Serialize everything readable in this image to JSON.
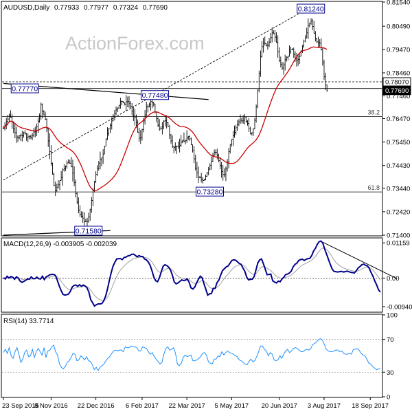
{
  "chart_data": [
    {
      "type": "ohlc",
      "title": "AUDUSD,Daily",
      "ohlc_header": {
        "open": "0.77933",
        "high": "0.77977",
        "low": "0.77324",
        "close": "0.77690"
      },
      "watermark": "ActionForex.com",
      "ylim": [
        0.714,
        0.8154
      ],
      "price_ticks": [
        "0.81540",
        "0.80490",
        "0.79470",
        "0.78460",
        "0.77460",
        "0.76470",
        "0.75450",
        "0.74430",
        "0.73440",
        "0.72420",
        "0.71400"
      ],
      "price_tick_values": [
        0.8154,
        0.8049,
        0.7947,
        0.7846,
        0.7746,
        0.7647,
        0.7545,
        0.7443,
        0.7344,
        0.7242,
        0.714
      ],
      "price_tags": [
        {
          "label": "0.78070",
          "value": 0.7807,
          "style": "outline"
        },
        {
          "label": "0.77690",
          "value": 0.7769,
          "style": "filled"
        }
      ],
      "annotations": [
        {
          "label": "0.81240",
          "value": 0.8124,
          "date_index": 210
        },
        {
          "label": "0.77770",
          "value": 0.7777,
          "date_index": 12
        },
        {
          "label": "0.77480",
          "value": 0.7748,
          "date_index": 102
        },
        {
          "label": "0.73280",
          "value": 0.7328,
          "date_index": 140
        },
        {
          "label": "0.71580",
          "value": 0.7158,
          "date_index": 56
        }
      ],
      "fib_levels": [
        {
          "label": "38.2",
          "value": 0.7656
        },
        {
          "label": "61.8",
          "value": 0.7328
        }
      ],
      "reference_lines": [
        {
          "style": "dashed",
          "value": 0.7807
        },
        {
          "style": "solid",
          "value": 0.7656
        },
        {
          "style": "solid",
          "value": 0.7328
        },
        {
          "style": "solid",
          "value": 0.7778
        }
      ],
      "trendlines": [
        {
          "style": "dashed",
          "from": [
            0,
            0.738
          ],
          "to": [
            212,
            0.813
          ]
        },
        {
          "style": "solid",
          "from": [
            0,
            0.78
          ],
          "to": [
            142,
            0.773
          ]
        },
        {
          "style": "solid",
          "from": [
            0,
            0.714
          ],
          "to": [
            74,
            0.716
          ]
        }
      ],
      "moving_average": {
        "color": "#cc0000"
      },
      "closes": [
        0.7605,
        0.7617,
        0.7634,
        0.7645,
        0.7661,
        0.7653,
        0.7631,
        0.7602,
        0.7586,
        0.7567,
        0.7564,
        0.7572,
        0.7574,
        0.7572,
        0.7586,
        0.7582,
        0.7564,
        0.7568,
        0.757,
        0.7566,
        0.7574,
        0.7589,
        0.7589,
        0.7612,
        0.7636,
        0.7658,
        0.7709,
        0.7678,
        0.7663,
        0.7644,
        0.7602,
        0.755,
        0.7503,
        0.7453,
        0.7405,
        0.7357,
        0.7333,
        0.7347,
        0.7359,
        0.7378,
        0.7391,
        0.7424,
        0.7429,
        0.7439,
        0.7454,
        0.7454,
        0.7453,
        0.7437,
        0.741,
        0.7369,
        0.7321,
        0.7284,
        0.7248,
        0.723,
        0.7222,
        0.7214,
        0.7199,
        0.72,
        0.7201,
        0.7219,
        0.7251,
        0.7291,
        0.7333,
        0.7372,
        0.7405,
        0.7432,
        0.7452,
        0.7469,
        0.7476,
        0.7493,
        0.7527,
        0.7559,
        0.7582,
        0.7603,
        0.7618,
        0.7637,
        0.7657,
        0.767,
        0.7685,
        0.7693,
        0.7705,
        0.7721,
        0.7722,
        0.7715,
        0.771,
        0.772,
        0.7722,
        0.7714,
        0.77,
        0.7679,
        0.7659,
        0.7653,
        0.7629,
        0.7588,
        0.7562,
        0.7566,
        0.7599,
        0.7637,
        0.7663,
        0.7699,
        0.77,
        0.7707,
        0.7721,
        0.7716,
        0.7711,
        0.7675,
        0.7647,
        0.7618,
        0.7601,
        0.7604,
        0.7612,
        0.7636,
        0.7638,
        0.7629,
        0.7613,
        0.7576,
        0.755,
        0.7527,
        0.7522,
        0.7525,
        0.7526,
        0.7526,
        0.7531,
        0.7544,
        0.755,
        0.7548,
        0.7552,
        0.7562,
        0.757,
        0.7559,
        0.7533,
        0.7508,
        0.7472,
        0.7431,
        0.7411,
        0.7391,
        0.739,
        0.7383,
        0.7378,
        0.7383,
        0.7396,
        0.7411,
        0.7427,
        0.7443,
        0.7461,
        0.7486,
        0.75,
        0.75,
        0.7485,
        0.7464,
        0.7443,
        0.7417,
        0.7404,
        0.7403,
        0.7428,
        0.7458,
        0.7503,
        0.7535,
        0.7557,
        0.7572,
        0.7587,
        0.7607,
        0.762,
        0.7633,
        0.764,
        0.7637,
        0.764,
        0.7651,
        0.7635,
        0.7626,
        0.7603,
        0.7581,
        0.7586,
        0.7603,
        0.764,
        0.7699,
        0.7771,
        0.7845,
        0.7917,
        0.796,
        0.7977,
        0.7973,
        0.7965,
        0.7966,
        0.798,
        0.7999,
        0.802,
        0.8016,
        0.8001,
        0.7978,
        0.7939,
        0.79,
        0.7883,
        0.7867,
        0.788,
        0.7903,
        0.7914,
        0.7919,
        0.7937,
        0.7947,
        0.7946,
        0.7926,
        0.7906,
        0.7901,
        0.7904,
        0.7918,
        0.7941,
        0.7963,
        0.7984,
        0.7998,
        0.802,
        0.8051,
        0.8062,
        0.8071,
        0.8048,
        0.8018,
        0.7994,
        0.7981,
        0.7977,
        0.7975,
        0.7948,
        0.789,
        0.7829,
        0.7793,
        0.7769
      ],
      "date_labels": [
        {
          "label": "23 Sep 2016",
          "index": 0
        },
        {
          "label": "8 Nov 2016",
          "index": 33
        },
        {
          "label": "22 Dec 2016",
          "index": 64
        },
        {
          "label": "6 Feb 2017",
          "index": 96
        },
        {
          "label": "22 Mar 2017",
          "index": 127
        },
        {
          "label": "5 May 2017",
          "index": 158
        },
        {
          "label": "20 Jun 2017",
          "index": 191
        },
        {
          "label": "3 Aug 2017",
          "index": 222
        },
        {
          "label": "18 Sep 2017",
          "index": 254
        }
      ],
      "date_count": 262
    },
    {
      "type": "line",
      "title": "MACD(12,26,9) -0.003905 -0.002039",
      "ylim": [
        -0.011,
        0.013
      ],
      "ticks": [
        "0.01159",
        "0.00",
        "-0.009408"
      ],
      "tick_values": [
        0.01159,
        0.0,
        -0.009408
      ],
      "series": [
        {
          "color": "#00008b",
          "values": [
            0.0001,
            -0.0003,
            0.0006,
            0.0,
            0.0005,
            0.0003,
            -0.0004,
            0.0004,
            0.0,
            -0.001,
            -0.0014,
            -0.0011,
            -0.0007,
            -0.0003,
            -0.0003,
            0.0004,
            -0.0002,
            -0.0002,
            0.0003,
            -0.0002,
            -0.0003,
            0.0006,
            -0.0005,
            0.0004,
            0.0007,
            0.0011,
            0.0012,
            0.0012,
            0.0009,
            -0.0007,
            -0.0025,
            -0.004,
            -0.0053,
            -0.0056,
            -0.0055,
            -0.0053,
            -0.0044,
            -0.003,
            -0.0024,
            -0.0023,
            -0.0027,
            -0.0022,
            -0.0027,
            -0.0023,
            -0.0026,
            -0.0032,
            -0.0046,
            -0.0071,
            -0.0081,
            -0.0092,
            -0.0088,
            -0.0085,
            -0.0085,
            -0.0084,
            -0.0075,
            -0.006,
            -0.0037,
            -0.0009,
            0.0017,
            0.0039,
            0.0052,
            0.0063,
            0.0064,
            0.0064,
            0.0061,
            0.0068,
            0.0069,
            0.0073,
            0.0074,
            0.0078,
            0.0079,
            0.0075,
            0.007,
            0.0074,
            0.0071,
            0.0071,
            0.0063,
            0.006,
            0.0053,
            0.0042,
            0.0024,
            0.0003,
            -0.0009,
            -0.0012,
            0.0001,
            0.0021,
            0.0039,
            0.0044,
            0.0041,
            0.0036,
            0.0026,
            0.0009,
            -0.0013,
            -0.0019,
            -0.0016,
            -0.0011,
            -0.0006,
            -0.0008,
            -0.0007,
            -0.0003,
            -0.0014,
            -0.0032,
            -0.0036,
            -0.003,
            -0.0016,
            -0.0004,
            0.0006,
            0.0001,
            -0.0019,
            -0.0037,
            -0.0056,
            -0.0052,
            -0.0051,
            -0.0034,
            -0.0034,
            -0.0015,
            -0.0007,
            0.001,
            0.0025,
            0.0031,
            0.0037,
            0.004,
            0.0049,
            0.0058,
            0.006,
            0.0059,
            0.0054,
            0.0048,
            0.0045,
            0.0033,
            0.0022,
            0.0003,
            -0.0006,
            -0.0004,
            -0.0004,
            0.0005,
            0.0027,
            0.005,
            0.006,
            0.0063,
            0.0047,
            0.0029,
            0.0011,
            0.0012,
            0.0013,
            -0.0009,
            -0.0013,
            -0.0016,
            -0.001,
            -0.0012,
            -0.0003,
            0.0003,
            0.0012,
            0.0013,
            0.0017,
            0.0023,
            0.0037,
            0.0045,
            0.0049,
            0.0058,
            0.0061,
            0.0062,
            0.0058,
            0.0062,
            0.0064,
            0.0065,
            0.0074,
            0.0089,
            0.0098,
            0.0111,
            0.012,
            0.0122,
            0.0115,
            0.0095,
            0.0079,
            0.0062,
            0.0045,
            0.003,
            0.0022,
            0.0021,
            0.002,
            0.0021,
            0.0022,
            0.002,
            0.0021,
            0.0023,
            0.0021,
            0.0019,
            0.0018,
            0.0017,
            0.0024,
            0.0033,
            0.0038,
            0.0044,
            0.0046,
            0.0042,
            0.004,
            0.0032,
            0.0018,
            0.0006,
            -0.001,
            -0.0023,
            -0.0039,
            -0.0046
          ]
        },
        {
          "color": "#a0a0a0",
          "values": [
            0.0001,
            0.0,
            0.0001,
            0.0001,
            0.0002,
            0.0002,
            0.0001,
            0.0002,
            0.0001,
            -0.0001,
            -0.0004,
            -0.0005,
            -0.0006,
            -0.0005,
            -0.0005,
            -0.0003,
            -0.0003,
            -0.0003,
            -0.0002,
            -0.0002,
            -0.0002,
            0.0,
            -0.0001,
            0.0,
            0.0001,
            0.0003,
            0.0005,
            0.0006,
            0.0007,
            0.0004,
            -0.0002,
            -0.001,
            -0.0018,
            -0.0026,
            -0.0032,
            -0.0037,
            -0.0038,
            -0.0037,
            -0.0034,
            -0.0032,
            -0.0031,
            -0.0029,
            -0.0029,
            -0.0028,
            -0.0027,
            -0.0028,
            -0.0032,
            -0.004,
            -0.0048,
            -0.0057,
            -0.0063,
            -0.0068,
            -0.0071,
            -0.0074,
            -0.0074,
            -0.0071,
            -0.0064,
            -0.0053,
            -0.0039,
            -0.0023,
            -0.0008,
            0.0006,
            0.0017,
            0.0026,
            0.0033,
            0.004,
            0.0046,
            0.0051,
            0.0056,
            0.006,
            0.0064,
            0.0066,
            0.0067,
            0.0068,
            0.0069,
            0.0069,
            0.0068,
            0.0067,
            0.0064,
            0.006,
            0.0053,
            0.0043,
            0.0033,
            0.0024,
            0.0019,
            0.002,
            0.0023,
            0.0028,
            0.0031,
            0.0032,
            0.0031,
            0.0027,
            0.0019,
            0.0011,
            0.0006,
            0.0002,
            0.0,
            -0.0001,
            -0.0002,
            -0.0002,
            -0.0005,
            -0.001,
            -0.0015,
            -0.0018,
            -0.0017,
            -0.0015,
            -0.0011,
            -0.0008,
            -0.001,
            -0.0015,
            -0.0023,
            -0.0029,
            -0.0034,
            -0.0034,
            -0.0034,
            -0.003,
            -0.0025,
            -0.0018,
            -0.0009,
            -0.0001,
            0.0007,
            0.0013,
            0.002,
            0.0028,
            0.0034,
            0.0039,
            0.0042,
            0.0043,
            0.0044,
            0.0042,
            0.0038,
            0.0031,
            0.0023,
            0.0018,
            0.0013,
            0.0012,
            0.0015,
            0.0022,
            0.003,
            0.0036,
            0.0039,
            0.0037,
            0.0032,
            0.0028,
            0.0025,
            0.0018,
            0.0012,
            0.0006,
            0.0003,
            0.0,
            -0.0001,
            -0.0,
            0.0002,
            0.0004,
            0.0007,
            0.001,
            0.0015,
            0.0021,
            0.0026,
            0.0033,
            0.0038,
            0.0043,
            0.0046,
            0.0049,
            0.0052,
            0.0055,
            0.0059,
            0.0065,
            0.0072,
            0.008,
            0.0088,
            0.0095,
            0.0099,
            0.0098,
            0.0094,
            0.0088,
            0.008,
            0.007,
            0.006,
            0.0052,
            0.0046,
            0.0041,
            0.0037,
            0.0034,
            0.0031,
            0.0029,
            0.0027,
            0.0025,
            0.0024,
            0.0022,
            0.0022,
            0.0024,
            0.0026,
            0.003,
            0.0033,
            0.0035,
            0.0036,
            0.0035,
            0.0032,
            0.0026,
            0.0019,
            0.0011,
            0.0002,
            -0.0007
          ]
        }
      ],
      "trendline": {
        "from": [
          172,
          0.0118
        ],
        "to": [
          212,
          -0.0002
        ]
      }
    },
    {
      "type": "line",
      "title": "RSI(14) 33.7714",
      "ylim": [
        0,
        100
      ],
      "ticks": [
        "100",
        "70",
        "30",
        "0"
      ],
      "tick_values": [
        100,
        70,
        30,
        0
      ],
      "series": [
        {
          "color": "#1e90ff",
          "values": [
            54,
            58,
            53,
            60,
            50,
            47,
            55,
            60,
            52,
            42,
            46,
            54,
            57,
            49,
            50,
            58,
            48,
            55,
            59,
            55,
            51,
            60,
            48,
            56,
            57,
            61,
            63,
            55,
            51,
            40,
            36,
            34,
            37,
            42,
            44,
            48,
            53,
            52,
            44,
            45,
            50,
            48,
            45,
            49,
            44,
            43,
            39,
            33,
            36,
            32,
            36,
            38,
            40,
            44,
            47,
            49,
            53,
            56,
            57,
            56,
            57,
            57,
            55,
            61,
            60,
            60,
            62,
            61,
            61,
            60,
            56,
            56,
            61,
            60,
            59,
            55,
            52,
            54,
            49,
            46,
            43,
            40,
            42,
            52,
            59,
            61,
            57,
            58,
            60,
            53,
            40,
            38,
            41,
            48,
            51,
            49,
            50,
            51,
            44,
            44,
            45,
            47,
            49,
            53,
            54,
            51,
            43,
            41,
            40,
            46,
            46,
            50,
            49,
            55,
            51,
            54,
            56,
            54,
            53,
            52,
            50,
            49,
            45,
            44,
            42,
            40,
            39,
            43,
            46,
            43,
            44,
            49,
            55,
            62,
            62,
            58,
            56,
            50,
            54,
            52,
            45,
            44,
            45,
            50,
            47,
            52,
            56,
            58,
            54,
            56,
            59,
            60,
            59,
            57,
            55,
            55,
            57,
            58,
            57,
            59,
            64,
            65,
            67,
            70,
            71,
            69,
            64,
            58,
            56,
            55,
            55,
            56,
            57,
            57,
            55,
            56,
            53,
            52,
            52,
            53,
            52,
            58,
            58,
            59,
            57,
            53,
            51,
            50,
            46,
            41,
            40,
            37,
            35,
            33,
            34,
            34
          ]
        }
      ]
    }
  ]
}
